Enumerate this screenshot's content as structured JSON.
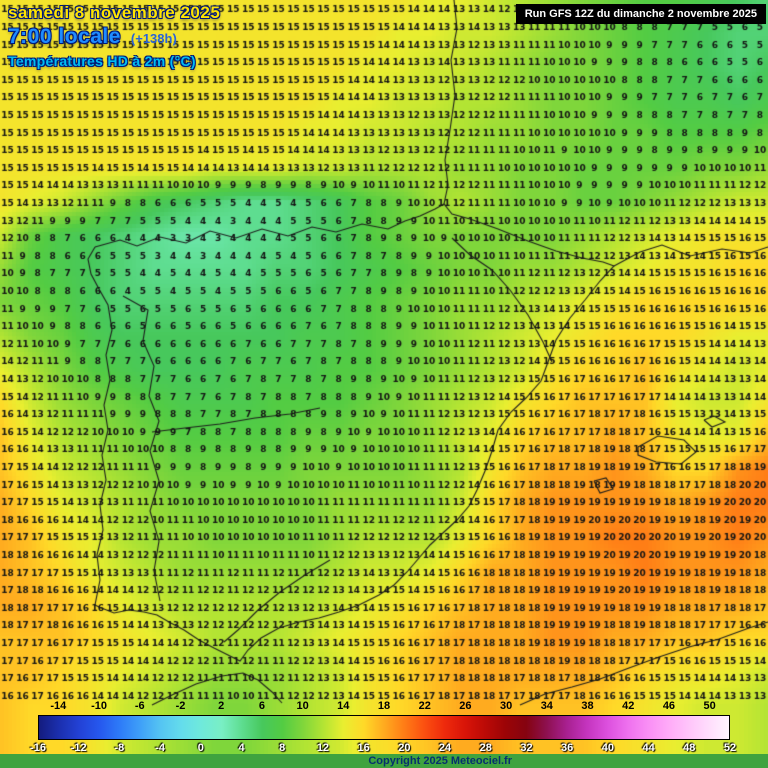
{
  "header": {
    "date": "samedi 8 novembre 2025",
    "time": "7:00 locale",
    "forecast_offset": "(+138h)",
    "title": "Températures HD à 2m (°C)"
  },
  "run_info": {
    "label": "Run GFS 12Z du dimanche 2 novembre 2025"
  },
  "footer": {
    "copyright": "Copyright 2025 Meteociel.fr",
    "bar_color": "#3fa33f"
  },
  "colors": {
    "date_text": "#ffe400",
    "time_text": "#1e8cff",
    "offset_text": "#2a64d8",
    "title_text": "#00bdf2",
    "number_text": "#141414",
    "outline": "#1c1c1c"
  },
  "chart_data": {
    "type": "heatmap",
    "title": "Températures HD à 2m (°C)",
    "model_run": "GFS 12Z du dimanche 2 novembre 2025",
    "valid_time": "samedi 8 novembre 2025 7:00 locale (+138h)",
    "units": "°C",
    "region": "Iberian Peninsula",
    "grid": {
      "cols": 26,
      "rows": 22,
      "x_range": [
        0,
        768
      ],
      "y_range": [
        0,
        705
      ],
      "values": [
        [
          15,
          15,
          15,
          15,
          15,
          15,
          15,
          15,
          15,
          15,
          15,
          15,
          15,
          15,
          14,
          14,
          13,
          12,
          11,
          10,
          9,
          8,
          8,
          7,
          6,
          5
        ],
        [
          15,
          15,
          15,
          15,
          15,
          15,
          15,
          15,
          15,
          15,
          15,
          15,
          15,
          14,
          14,
          13,
          13,
          12,
          11,
          10,
          9,
          8,
          7,
          6,
          5,
          5
        ],
        [
          15,
          15,
          15,
          15,
          15,
          15,
          15,
          15,
          15,
          15,
          15,
          15,
          14,
          14,
          13,
          13,
          12,
          11,
          10,
          10,
          9,
          8,
          7,
          6,
          5,
          6
        ],
        [
          15,
          15,
          15,
          15,
          15,
          15,
          15,
          15,
          15,
          15,
          15,
          14,
          14,
          13,
          13,
          12,
          12,
          11,
          10,
          10,
          9,
          8,
          7,
          7,
          6,
          7
        ],
        [
          15,
          15,
          15,
          15,
          15,
          15,
          15,
          15,
          15,
          15,
          14,
          14,
          13,
          13,
          12,
          12,
          11,
          11,
          10,
          10,
          9,
          9,
          8,
          8,
          8,
          9
        ],
        [
          15,
          15,
          15,
          15,
          15,
          15,
          15,
          14,
          14,
          14,
          13,
          13,
          12,
          12,
          12,
          11,
          11,
          10,
          10,
          9,
          9,
          9,
          9,
          10,
          10,
          11
        ],
        [
          15,
          14,
          13,
          11,
          9,
          7,
          6,
          5,
          4,
          4,
          5,
          6,
          8,
          9,
          11,
          12,
          11,
          10,
          10,
          9,
          9,
          10,
          11,
          12,
          13,
          13
        ],
        [
          13,
          9,
          7,
          6,
          5,
          4,
          3,
          3,
          4,
          4,
          5,
          6,
          8,
          9,
          10,
          10,
          10,
          10,
          10,
          11,
          12,
          13,
          14,
          15,
          15,
          15
        ],
        [
          11,
          8,
          7,
          6,
          5,
          4,
          4,
          4,
          4,
          5,
          5,
          6,
          7,
          8,
          9,
          10,
          10,
          11,
          11,
          12,
          13,
          14,
          15,
          15,
          16,
          16
        ],
        [
          10,
          9,
          8,
          6,
          5,
          5,
          5,
          5,
          5,
          6,
          6,
          7,
          8,
          9,
          10,
          11,
          11,
          12,
          13,
          14,
          15,
          16,
          16,
          16,
          16,
          16
        ],
        [
          12,
          10,
          9,
          7,
          6,
          6,
          6,
          6,
          6,
          6,
          7,
          7,
          8,
          9,
          10,
          11,
          12,
          13,
          14,
          15,
          16,
          16,
          16,
          15,
          14,
          14
        ],
        [
          14,
          12,
          10,
          8,
          7,
          6,
          6,
          6,
          7,
          7,
          7,
          8,
          8,
          9,
          10,
          11,
          12,
          13,
          15,
          16,
          16,
          17,
          15,
          14,
          13,
          14
        ],
        [
          16,
          13,
          11,
          10,
          9,
          8,
          7,
          7,
          7,
          8,
          8,
          8,
          9,
          10,
          11,
          12,
          13,
          15,
          16,
          17,
          17,
          17,
          14,
          13,
          13,
          15
        ],
        [
          17,
          14,
          12,
          11,
          10,
          9,
          8,
          8,
          8,
          8,
          9,
          9,
          10,
          10,
          11,
          13,
          14,
          16,
          17,
          17,
          18,
          17,
          15,
          14,
          14,
          17
        ],
        [
          17,
          15,
          13,
          12,
          11,
          10,
          9,
          9,
          9,
          9,
          10,
          10,
          10,
          10,
          11,
          12,
          15,
          17,
          18,
          18,
          19,
          18,
          16,
          16,
          19,
          20
        ],
        [
          18,
          16,
          14,
          13,
          12,
          11,
          10,
          10,
          10,
          10,
          10,
          11,
          11,
          11,
          11,
          13,
          16,
          18,
          19,
          19,
          19,
          19,
          18,
          19,
          20,
          20
        ],
        [
          18,
          17,
          15,
          14,
          12,
          11,
          11,
          10,
          10,
          10,
          10,
          11,
          12,
          12,
          12,
          14,
          16,
          18,
          19,
          19,
          20,
          20,
          19,
          19,
          20,
          19
        ],
        [
          18,
          17,
          16,
          14,
          13,
          12,
          11,
          11,
          11,
          11,
          11,
          12,
          13,
          13,
          14,
          16,
          18,
          18,
          19,
          19,
          19,
          20,
          19,
          19,
          19,
          18
        ],
        [
          18,
          18,
          17,
          16,
          14,
          13,
          12,
          12,
          12,
          12,
          12,
          13,
          14,
          15,
          16,
          17,
          18,
          18,
          19,
          19,
          19,
          19,
          18,
          18,
          18,
          17
        ],
        [
          17,
          17,
          17,
          16,
          15,
          14,
          13,
          12,
          12,
          12,
          13,
          14,
          15,
          16,
          17,
          18,
          18,
          18,
          19,
          19,
          18,
          18,
          17,
          17,
          16,
          16
        ],
        [
          17,
          17,
          16,
          15,
          14,
          13,
          12,
          11,
          11,
          11,
          12,
          13,
          15,
          16,
          17,
          18,
          18,
          18,
          18,
          18,
          17,
          16,
          15,
          15,
          14,
          13
        ],
        [
          17,
          16,
          16,
          15,
          13,
          12,
          11,
          10,
          10,
          11,
          12,
          13,
          15,
          16,
          17,
          18,
          18,
          17,
          17,
          17,
          16,
          15,
          14,
          13,
          13,
          12
        ]
      ]
    },
    "colorbar": {
      "min": -16,
      "max": 52,
      "top_labels": [
        -14,
        -10,
        -6,
        -2,
        2,
        6,
        10,
        14,
        18,
        22,
        26,
        30,
        34,
        38,
        42,
        46,
        50
      ],
      "bottom_labels": [
        -16,
        -12,
        -8,
        -4,
        0,
        4,
        8,
        12,
        16,
        20,
        24,
        28,
        32,
        36,
        40,
        44,
        48,
        52
      ],
      "stops": [
        [
          -16,
          "#141c7e"
        ],
        [
          -14,
          "#1b2fae"
        ],
        [
          -12,
          "#2342d6"
        ],
        [
          -10,
          "#2658ee"
        ],
        [
          -8,
          "#2e7cf8"
        ],
        [
          -6,
          "#3fa0f8"
        ],
        [
          -4,
          "#55c4f2"
        ],
        [
          -2,
          "#64dcec"
        ],
        [
          0,
          "#6fe9db"
        ],
        [
          2,
          "#79efc4"
        ],
        [
          4,
          "#5edd90"
        ],
        [
          6,
          "#47c85c"
        ],
        [
          8,
          "#53cc43"
        ],
        [
          10,
          "#7fd63b"
        ],
        [
          12,
          "#b3e433"
        ],
        [
          14,
          "#e9ee30"
        ],
        [
          16,
          "#ffd928"
        ],
        [
          18,
          "#ffab1f"
        ],
        [
          20,
          "#ff7d16"
        ],
        [
          22,
          "#fb4f10"
        ],
        [
          24,
          "#ee2a0c"
        ],
        [
          26,
          "#d81408"
        ],
        [
          28,
          "#bb0a06"
        ],
        [
          30,
          "#9c0406"
        ],
        [
          32,
          "#850310"
        ],
        [
          34,
          "#8d104e"
        ],
        [
          36,
          "#a82090"
        ],
        [
          38,
          "#c434be"
        ],
        [
          40,
          "#dc50de"
        ],
        [
          42,
          "#ee70ee"
        ],
        [
          44,
          "#f98ef5"
        ],
        [
          46,
          "#ffaaf8"
        ],
        [
          48,
          "#ffc4fa"
        ],
        [
          50,
          "#ffddfc"
        ],
        [
          52,
          "#fff4ff"
        ]
      ]
    }
  }
}
